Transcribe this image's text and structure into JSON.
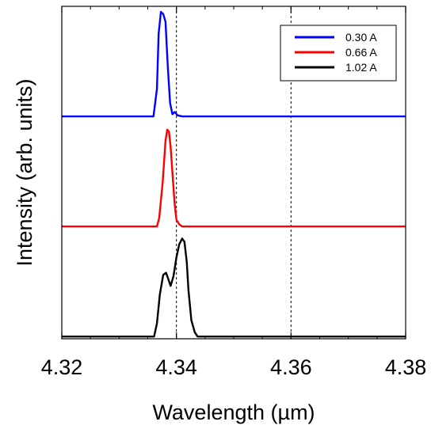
{
  "chart_data": {
    "type": "line",
    "xlabel": "Wavelength (µm)",
    "ylabel": "Intensity (arb. units)",
    "xlim": [
      4.32,
      4.38
    ],
    "x_ticks": [
      4.32,
      4.34,
      4.36,
      4.38
    ],
    "x_tick_labels": [
      "4.32",
      "4.34",
      "4.36",
      "4.38"
    ],
    "grid": false,
    "reference_lines_x": [
      4.34,
      4.36
    ],
    "legend_position": "top-right",
    "y_ticks_labeled": false,
    "series": [
      {
        "name": "0.30 A",
        "color": "#0000ff",
        "offset": 2.0,
        "x": [
          4.32,
          4.336,
          4.3366,
          4.3369,
          4.3373,
          4.3377,
          4.3381,
          4.3385,
          4.3389,
          4.3393,
          4.3397,
          4.3402,
          4.341,
          4.343,
          4.38
        ],
        "y": [
          0.0,
          0.0,
          0.25,
          0.75,
          0.95,
          0.93,
          0.86,
          0.45,
          0.12,
          0.02,
          0.04,
          0.01,
          0.0,
          0.0,
          0.0
        ]
      },
      {
        "name": "0.66 A",
        "color": "#ff0000",
        "offset": 1.0,
        "x": [
          4.32,
          4.3366,
          4.337,
          4.3376,
          4.3381,
          4.3384,
          4.3387,
          4.339,
          4.3394,
          4.3397,
          4.34,
          4.3405,
          4.341,
          4.38
        ],
        "y": [
          0.0,
          0.0,
          0.08,
          0.4,
          0.78,
          0.88,
          0.86,
          0.72,
          0.42,
          0.2,
          0.06,
          0.02,
          0.0,
          0.0
        ]
      },
      {
        "name": "1.02 A",
        "color": "#000000",
        "offset": 0.0,
        "x": [
          4.32,
          4.3361,
          4.3366,
          4.3371,
          4.3377,
          4.3382,
          4.3386,
          4.339,
          4.3395,
          4.34,
          4.3405,
          4.341,
          4.3414,
          4.3418,
          4.3421,
          4.3426,
          4.3432,
          4.3437,
          4.38
        ],
        "y": [
          0.0,
          0.0,
          0.12,
          0.38,
          0.56,
          0.58,
          0.52,
          0.46,
          0.55,
          0.72,
          0.84,
          0.89,
          0.86,
          0.68,
          0.42,
          0.15,
          0.04,
          0.0,
          0.0
        ]
      }
    ]
  }
}
